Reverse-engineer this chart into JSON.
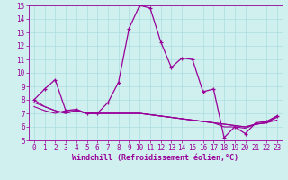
{
  "xlabel": "Windchill (Refroidissement éolien,°C)",
  "bg_color": "#cff0ee",
  "line_color": "#990099",
  "grid_color": "#aadddd",
  "xlim": [
    -0.5,
    23.5
  ],
  "ylim": [
    5,
    15
  ],
  "xticks": [
    0,
    1,
    2,
    3,
    4,
    5,
    6,
    7,
    8,
    9,
    10,
    11,
    12,
    13,
    14,
    15,
    16,
    17,
    18,
    19,
    20,
    21,
    22,
    23
  ],
  "yticks": [
    5,
    6,
    7,
    8,
    9,
    10,
    11,
    12,
    13,
    14,
    15
  ],
  "series": [
    [
      8.0,
      8.8,
      9.5,
      7.2,
      7.3,
      7.0,
      7.0,
      7.8,
      9.3,
      13.3,
      15.0,
      14.8,
      12.3,
      10.4,
      11.1,
      11.0,
      8.6,
      8.8,
      5.2,
      6.0,
      5.5,
      6.3,
      6.4,
      6.8
    ],
    [
      7.5,
      7.2,
      7.0,
      7.2,
      7.2,
      7.0,
      7.0,
      7.0,
      7.0,
      7.0,
      7.0,
      6.9,
      6.8,
      6.7,
      6.6,
      6.5,
      6.4,
      6.3,
      6.0,
      6.0,
      5.9,
      6.2,
      6.3,
      6.5
    ],
    [
      7.8,
      7.5,
      7.2,
      7.0,
      7.2,
      7.0,
      7.0,
      7.0,
      7.0,
      7.0,
      7.0,
      6.9,
      6.8,
      6.7,
      6.6,
      6.5,
      6.4,
      6.3,
      6.2,
      6.1,
      6.0,
      6.2,
      6.3,
      6.7
    ],
    [
      8.0,
      7.5,
      7.2,
      7.0,
      7.2,
      7.0,
      7.0,
      7.0,
      7.0,
      7.0,
      7.0,
      6.9,
      6.8,
      6.7,
      6.6,
      6.5,
      6.4,
      6.3,
      6.2,
      6.1,
      6.0,
      6.2,
      6.3,
      6.8
    ]
  ],
  "tick_fontsize": 5.5,
  "xlabel_fontsize": 6.0
}
